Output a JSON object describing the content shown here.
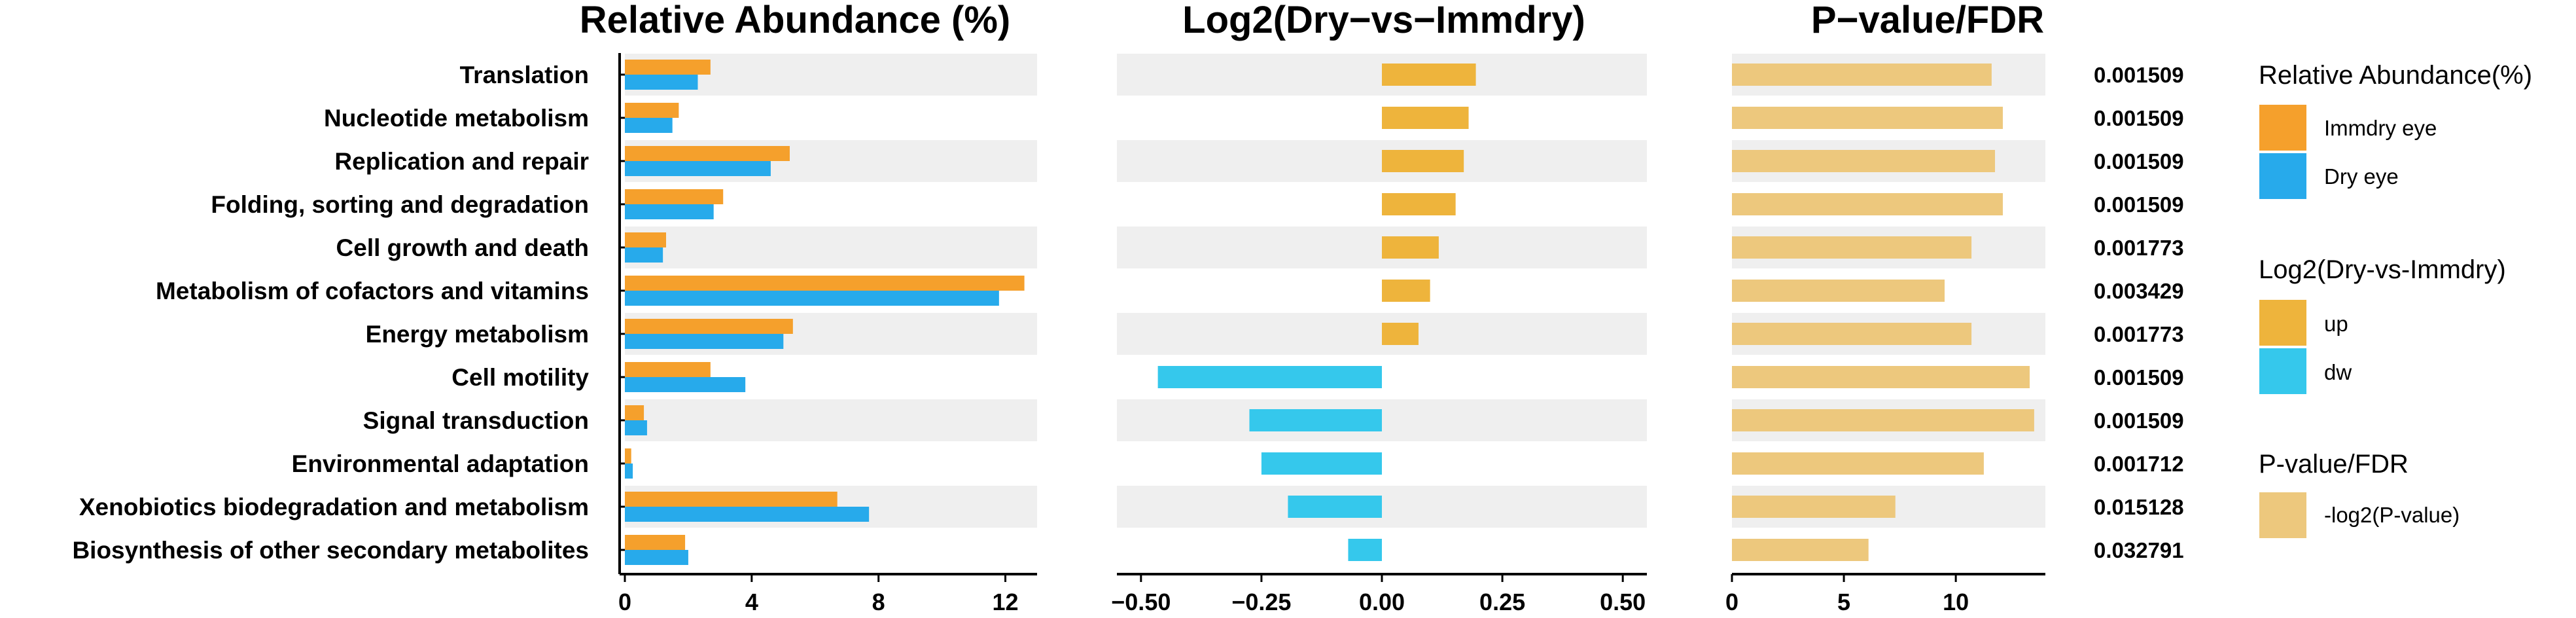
{
  "chart_data": {
    "type": "bar",
    "categories": [
      "Translation",
      "Nucleotide metabolism",
      "Replication and repair",
      "Folding, sorting and degradation",
      "Cell growth and death",
      "Metabolism of cofactors and vitamins",
      "Energy metabolism",
      "Cell motility",
      "Signal transduction",
      "Environmental adaptation",
      "Xenobiotics biodegradation and metabolism",
      "Biosynthesis of other secondary metabolites"
    ],
    "panels": [
      {
        "title": "Relative Abundance (%)",
        "xlim": [
          0,
          13
        ],
        "ticks": [
          "0",
          "4",
          "8",
          "12"
        ],
        "tick_values": [
          0,
          4,
          8,
          12
        ],
        "series": [
          {
            "name": "Immdry eye",
            "values": [
              2.7,
              1.7,
              5.2,
              3.1,
              1.3,
              12.6,
              5.3,
              2.7,
              0.6,
              0.2,
              6.7,
              1.9
            ]
          },
          {
            "name": "Dry eye",
            "values": [
              2.3,
              1.5,
              4.6,
              2.8,
              1.2,
              11.8,
              5.0,
              3.8,
              0.7,
              0.25,
              7.7,
              2.0
            ]
          }
        ]
      },
      {
        "title": "Log2(Dry−vs−Immdry)",
        "xlim": [
          -0.55,
          0.55
        ],
        "ticks": [
          "−0.50",
          "−0.25",
          "0.00",
          "0.25",
          "0.50"
        ],
        "tick_values": [
          -0.5,
          -0.25,
          0.0,
          0.25,
          0.5
        ],
        "values": [
          0.195,
          0.18,
          0.17,
          0.153,
          0.118,
          0.1,
          0.076,
          -0.465,
          -0.275,
          -0.25,
          -0.195,
          -0.07
        ]
      },
      {
        "title": "P−value/FDR",
        "xlim": [
          0,
          14
        ],
        "ticks": [
          "0",
          "5",
          "10"
        ],
        "tick_values": [
          0,
          5,
          10
        ],
        "series_name": "-log2(P-value)",
        "values": [
          11.6,
          12.1,
          11.75,
          12.1,
          10.7,
          9.5,
          10.7,
          13.3,
          13.5,
          11.25,
          7.3,
          6.1
        ],
        "labels": [
          "0.001509",
          "0.001509",
          "0.001509",
          "0.001509",
          "0.001773",
          "0.003429",
          "0.001773",
          "0.001509",
          "0.001509",
          "0.001712",
          "0.015128",
          "0.032791"
        ]
      }
    ],
    "legend": {
      "placement": "right",
      "groups": [
        {
          "title": "Relative Abundance(%)",
          "items": [
            {
              "label": "Immdry eye",
              "color": "#F5A02C"
            },
            {
              "label": "Dry eye",
              "color": "#27AAEB"
            }
          ]
        },
        {
          "title": "Log2(Dry-vs-Immdry)",
          "items": [
            {
              "label": "up",
              "color": "#EEB43C"
            },
            {
              "label": "dw",
              "color": "#35C8EC"
            }
          ]
        },
        {
          "title": "P-value/FDR",
          "items": [
            {
              "label": "-log2(P-value)",
              "color": "#EDC87D"
            }
          ]
        }
      ]
    }
  },
  "colors": {
    "immdry": "#F5A02C",
    "dry": "#27AAEB",
    "up": "#EEB43C",
    "dw": "#35C8EC",
    "pval": "#EDC87D",
    "band": "#EFEFEF"
  }
}
